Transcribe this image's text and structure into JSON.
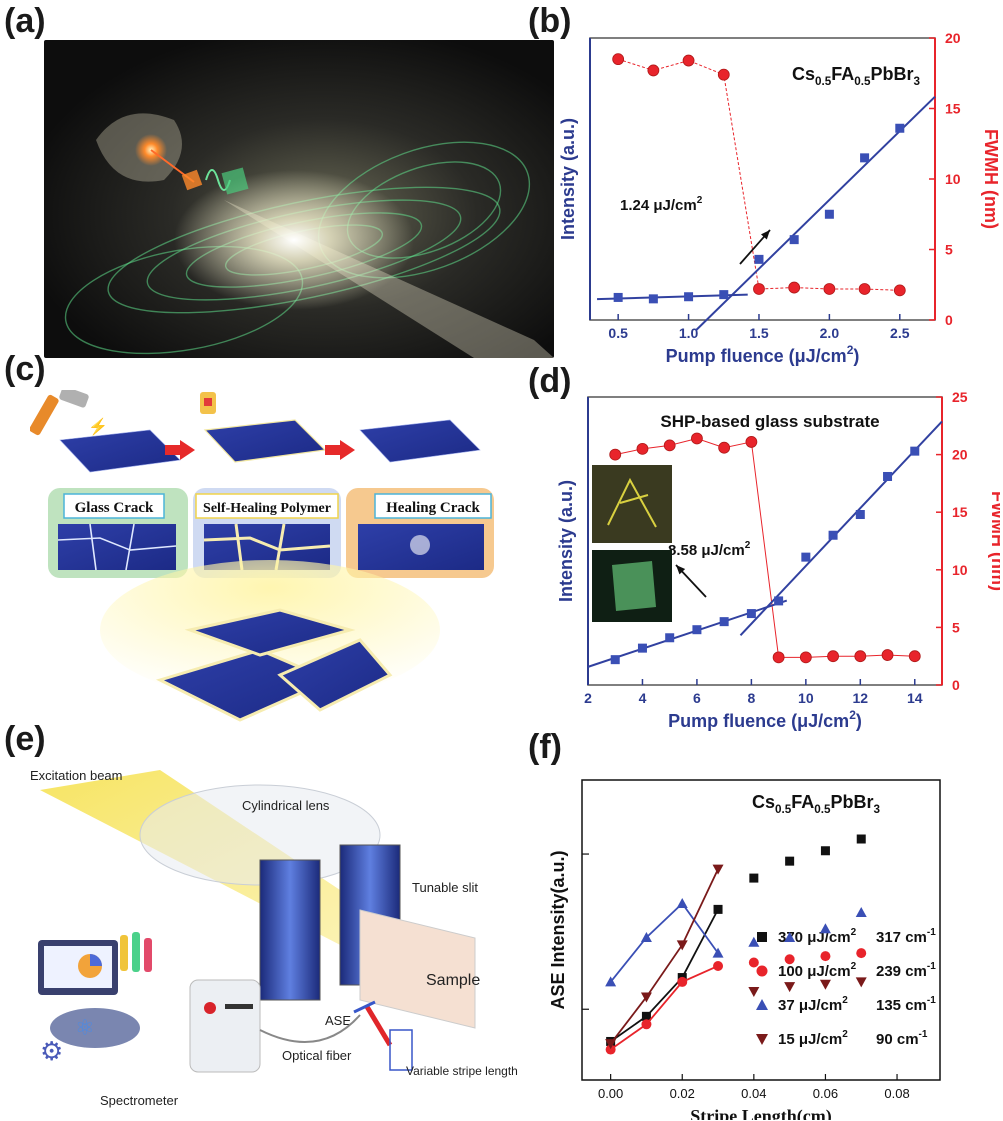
{
  "panels": {
    "a": "(a)",
    "b": "(b)",
    "c": "(c)",
    "d": "(d)",
    "e": "(e)",
    "f": "(f)"
  },
  "panel_c": {
    "labels": [
      "Glass Crack",
      "Self-Healing Polymer",
      "Healing Crack"
    ]
  },
  "panel_e": {
    "labels": {
      "excitation": "Excitation beam",
      "lens": "Cylindrical lens",
      "slit": "Tunable slit",
      "sample": "Sample",
      "ase": "ASE",
      "fiber": "Optical fiber",
      "stripe": "Variable stripe length",
      "spectrometer": "Spectrometer"
    }
  },
  "colors": {
    "navy": "#2c3b8f",
    "red": "#e8242b",
    "dark": "#1a1a1a",
    "fit_blue": "#3141a0"
  },
  "chart_data": [
    {
      "id": "b",
      "type": "scatter",
      "title": "",
      "annotation_composition": {
        "base": "Cs",
        "sub1": "0.5",
        "mid": "FA",
        "sub2": "0.5",
        "end": "PbBr",
        "sub3": "3"
      },
      "xlabel_text": "Pump fluence (μJ/cm",
      "xlabel_sup": "2",
      "xlabel_end": ")",
      "ylabel_left": "Intensity (a.u.)",
      "ylabel_right": "FWMH (nm)",
      "xlim": [
        0.3,
        2.75
      ],
      "xticks": [
        "0.5",
        "1.0",
        "1.5",
        "2.0",
        "2.5"
      ],
      "xtick_values": [
        0.5,
        1.0,
        1.5,
        2.0,
        2.5
      ],
      "y2lim": [
        0,
        20
      ],
      "y2ticks": [
        "0",
        "5",
        "10",
        "15",
        "20"
      ],
      "y2tick_values": [
        0,
        5,
        10,
        15,
        20
      ],
      "intensity_x": [
        0.5,
        0.75,
        1.0,
        1.25,
        1.5,
        1.75,
        2.0,
        2.25,
        2.5
      ],
      "intensity_y": [
        1.6,
        1.5,
        1.65,
        1.8,
        4.3,
        5.7,
        7.5,
        11.5,
        13.6
      ],
      "fwhm_x": [
        0.5,
        0.75,
        1.0,
        1.25,
        1.5,
        1.75,
        2.0,
        2.25,
        2.5
      ],
      "fwhm_y": [
        18.5,
        17.7,
        18.4,
        17.4,
        2.2,
        2.3,
        2.2,
        2.2,
        2.1
      ],
      "threshold_label": "1.24 μJ/cm",
      "threshold_sup": "2"
    },
    {
      "id": "d",
      "type": "scatter",
      "title": "SHP-based glass substrate",
      "xlabel_text": "Pump fluence (μJ/cm",
      "xlabel_sup": "2",
      "xlabel_end": ")",
      "ylabel_left": "Intensity (a.u.)",
      "ylabel_right": "FWMH (nm)",
      "xlim": [
        2,
        15
      ],
      "xticks": [
        "2",
        "4",
        "6",
        "8",
        "10",
        "12",
        "14"
      ],
      "xtick_values": [
        2,
        4,
        6,
        8,
        10,
        12,
        14
      ],
      "y2lim": [
        0,
        25
      ],
      "y2ticks": [
        "0",
        "5",
        "10",
        "15",
        "20",
        "25"
      ],
      "y2tick_values": [
        0,
        5,
        10,
        15,
        20,
        25
      ],
      "intensity_x": [
        3,
        4,
        5,
        6,
        7,
        8,
        9,
        10,
        11,
        12,
        13,
        14
      ],
      "intensity_y": [
        2.2,
        3.2,
        4.1,
        4.8,
        5.5,
        6.2,
        7.3,
        11.1,
        13.0,
        14.8,
        18.1,
        20.3
      ],
      "fwhm_x": [
        3,
        4,
        5,
        6,
        7,
        8,
        9,
        10,
        11,
        12,
        13,
        14
      ],
      "fwhm_y": [
        20.0,
        20.5,
        20.8,
        21.4,
        20.6,
        21.1,
        2.4,
        2.4,
        2.5,
        2.5,
        2.6,
        2.5
      ],
      "threshold_label": "8.58 μJ/cm",
      "threshold_sup": "2"
    },
    {
      "id": "f",
      "type": "scatter",
      "title": "",
      "annotation_composition": {
        "base": "Cs",
        "sub1": "0.5",
        "mid": "FA",
        "sub2": "0.5",
        "end": "PbBr",
        "sub3": "3"
      },
      "xlabel": "Stripe Length(cm)",
      "ylabel": "ASE Intensity(a.u.)",
      "y_scale": "log",
      "xlim": [
        -0.008,
        0.092
      ],
      "xticks": [
        "0.00",
        "0.02",
        "0.04",
        "0.06",
        "0.08"
      ],
      "xtick_values": [
        0.0,
        0.02,
        0.04,
        0.06,
        0.08
      ],
      "x": [
        0.0,
        0.01,
        0.02,
        0.03,
        0.04,
        0.05,
        0.06,
        0.07
      ],
      "series": [
        {
          "fluence": "370 μJ/cm",
          "sup": "2",
          "gain": "317 cm",
          "gain_sup": "-1",
          "marker": "square",
          "color": "#111111",
          "values": [
            0.62,
            0.9,
            1.6,
            4.4,
            7.0,
            9.0,
            10.5,
            12.5
          ]
        },
        {
          "fluence": "100 μJ/cm",
          "sup": "2",
          "gain": "239 cm",
          "gain_sup": "-1",
          "marker": "circle",
          "color": "#e8242b",
          "values": [
            0.55,
            0.8,
            1.5,
            1.9,
            2.0,
            2.1,
            2.2,
            2.3
          ]
        },
        {
          "fluence": "37 μJ/cm",
          "sup": "2",
          "gain": "135 cm",
          "gain_sup": "-1",
          "marker": "triangle-up",
          "color": "#3a4fb5",
          "values": [
            1.5,
            2.9,
            4.8,
            2.3,
            2.7,
            2.9,
            3.3,
            4.2
          ]
        },
        {
          "fluence": "15 μJ/cm",
          "sup": "2",
          "gain": "90 cm",
          "gain_sup": "-1",
          "marker": "triangle-down",
          "color": "#7a1a1a",
          "values": [
            0.6,
            1.2,
            2.6,
            8.0,
            1.3,
            1.4,
            1.45,
            1.5
          ]
        }
      ]
    }
  ]
}
